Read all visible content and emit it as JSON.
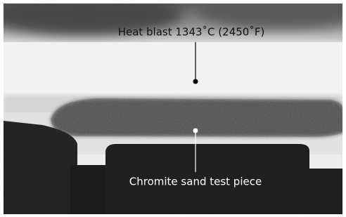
{
  "annotations": [
    {
      "label": "Heat blast 1343˚C (2450˚F)"
    },
    {
      "label": "Chromite sand test piece"
    }
  ]
}
